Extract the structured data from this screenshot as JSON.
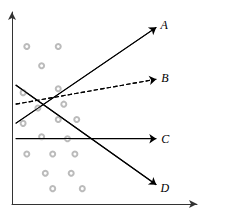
{
  "chart_data": {
    "type": "scatter",
    "xlim": [
      0.0,
      1.0
    ],
    "ylim": [
      0.0,
      1.0
    ],
    "tick_labels": false,
    "grid": false,
    "series": [
      {
        "type": "scatter",
        "color": "#aaaaaa",
        "marker": "open_circle",
        "x": [
          0.08,
          0.25,
          0.16,
          0.06,
          0.25,
          0.14,
          0.28,
          0.06,
          0.25,
          0.35,
          0.16,
          0.3,
          0.08,
          0.22,
          0.34,
          0.18,
          0.32,
          0.22,
          0.38
        ],
        "values": [
          0.82,
          0.82,
          0.72,
          0.58,
          0.6,
          0.5,
          0.52,
          0.42,
          0.44,
          0.44,
          0.35,
          0.34,
          0.26,
          0.26,
          0.26,
          0.16,
          0.16,
          0.08,
          0.08
        ]
      },
      {
        "type": "line",
        "name": "A",
        "color": "#000000",
        "line_style": "solid",
        "x": [
          0.02,
          0.78
        ],
        "values": [
          0.42,
          0.92
        ]
      },
      {
        "type": "line",
        "name": "B",
        "color": "#000000",
        "line_style": "dashed",
        "x": [
          0.02,
          0.78
        ],
        "values": [
          0.52,
          0.65
        ]
      },
      {
        "type": "line",
        "name": "C",
        "color": "#000000",
        "line_style": "solid",
        "x": [
          0.02,
          0.78
        ],
        "values": [
          0.34,
          0.34
        ]
      },
      {
        "type": "line",
        "name": "D",
        "color": "#000000",
        "line_style": "solid",
        "x": [
          0.02,
          0.78
        ],
        "values": [
          0.62,
          0.1
        ]
      }
    ]
  }
}
